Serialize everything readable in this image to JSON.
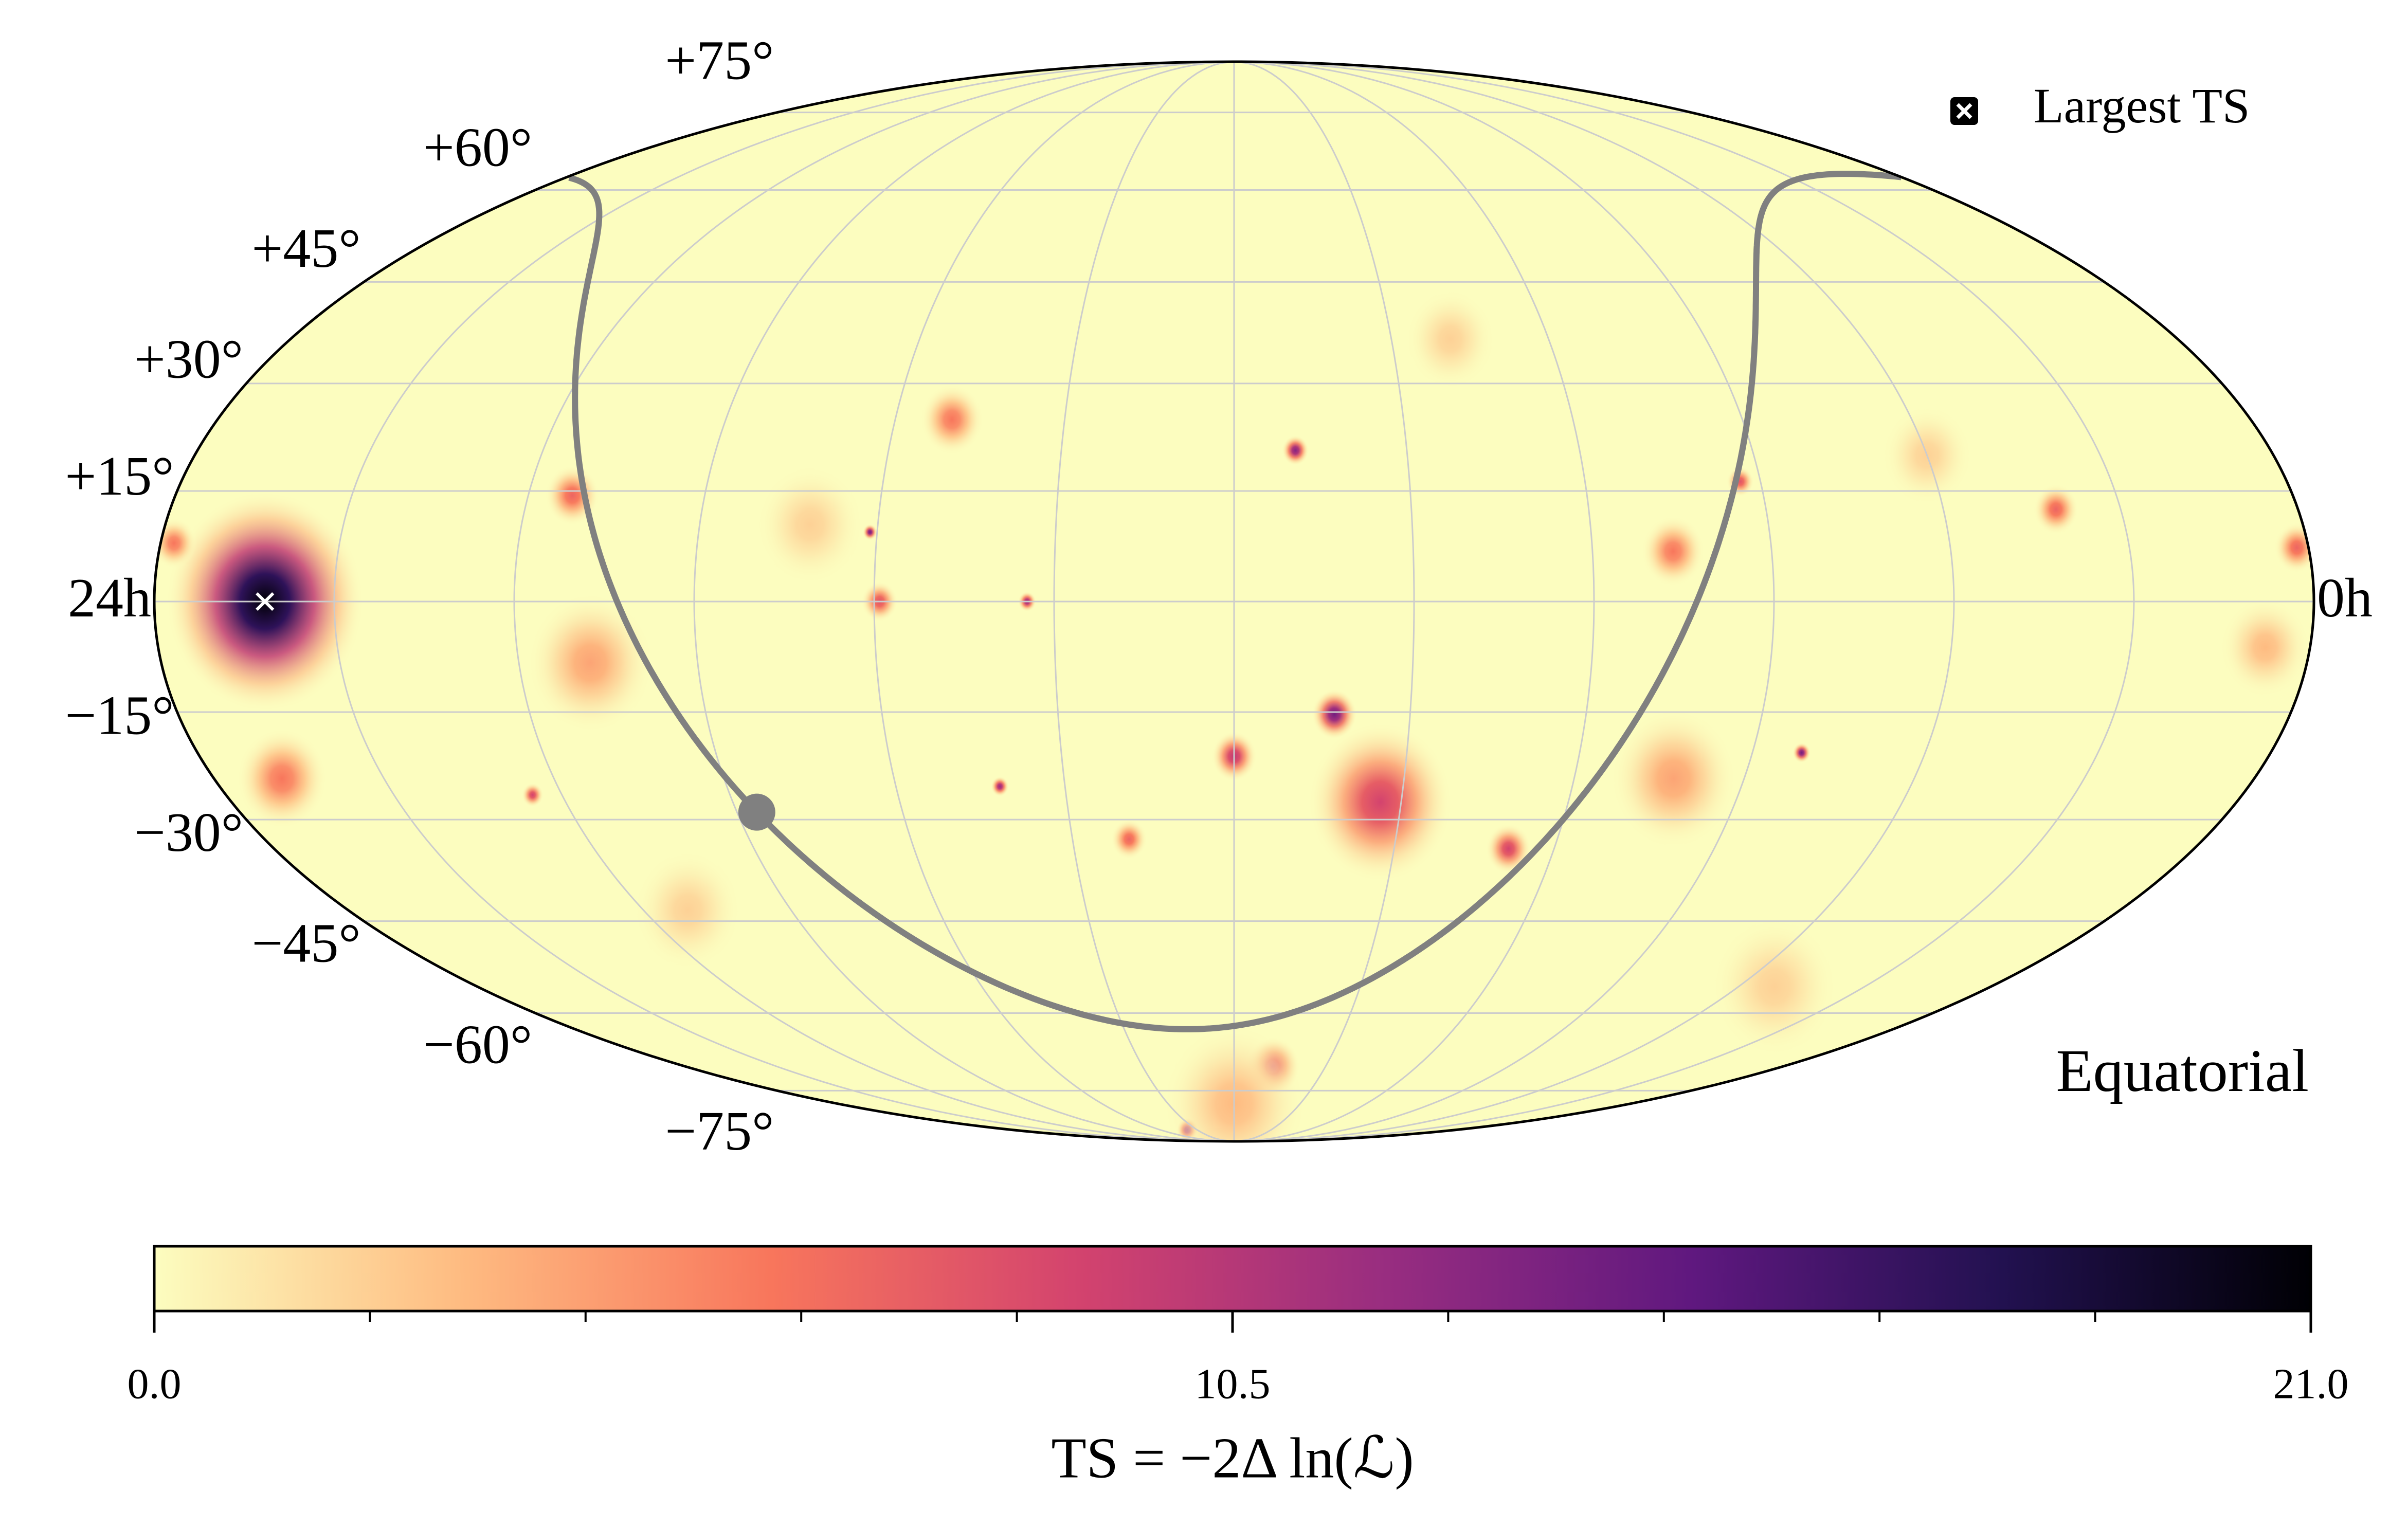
{
  "chart_data": {
    "type": "skymap",
    "projection": "mollweide",
    "frame": "Equatorial",
    "legend": {
      "label": "Largest TS",
      "corner": "upper right"
    },
    "ra_ticks": [
      {
        "value": 24,
        "label": "24h"
      },
      {
        "value": 0,
        "label": "0h"
      }
    ],
    "ra_grid": [
      2,
      4,
      6,
      8,
      10,
      12,
      14,
      16,
      18,
      20,
      22
    ],
    "dec_ticks": [
      {
        "value": 75,
        "label": "+75°"
      },
      {
        "value": 60,
        "label": "+60°"
      },
      {
        "value": 45,
        "label": "+45°"
      },
      {
        "value": 30,
        "label": "+30°"
      },
      {
        "value": 15,
        "label": "+15°"
      },
      {
        "value": -15,
        "label": "−15°"
      },
      {
        "value": -30,
        "label": "−30°"
      },
      {
        "value": -45,
        "label": "−45°"
      },
      {
        "value": -60,
        "label": "−60°"
      },
      {
        "value": -75,
        "label": "−75°"
      }
    ],
    "dec_grid": [
      -75,
      -60,
      -45,
      -30,
      -15,
      0,
      15,
      30,
      45,
      60,
      75
    ],
    "ra": [
      22.77,
      23.2,
      19.5,
      19.2,
      20.35,
      16.76,
      16.08,
      15.94,
      15.33,
      14.3,
      14.77,
      13.3,
      12,
      11.29,
      10.86,
      10.25,
      8.57,
      11.15,
      14.5,
      7.1,
      6.83,
      5.43,
      2.73,
      6.23,
      0.13,
      23.85,
      0.5,
      9.25,
      19.4,
      3.43,
      4,
      12
    ],
    "dec": [
      0,
      -24.2,
      14.4,
      -8.3,
      -26.5,
      10.4,
      9.4,
      0,
      24.9,
      0,
      -25.3,
      -32.8,
      -21.1,
      20.6,
      -15.3,
      -27.5,
      -34.2,
      -70,
      -85,
      6.8,
      -24.2,
      -20.6,
      12.5,
      16.3,
      7.3,
      7.9,
      -6.2,
      36.4,
      -43.3,
      -55.5,
      19.9,
      -78
    ],
    "values": [
      21,
      6,
      7,
      4,
      9,
      2,
      14,
      8,
      6,
      12,
      12,
      7,
      10,
      13,
      14,
      9,
      9,
      8,
      12,
      6,
      4,
      14,
      7,
      8,
      7,
      6,
      3,
      2,
      2,
      2,
      2,
      3
    ],
    "sigma": [
      11,
      5,
      3,
      7,
      1.2,
      6,
      0.8,
      2,
      3.5,
      1,
      1,
      2,
      2.5,
      1.5,
      2.5,
      8,
      2.5,
      3,
      1.2,
      3.5,
      7,
      1,
      2.5,
      1.5,
      2.5,
      2.5,
      5,
      5,
      6,
      7,
      5,
      8
    ],
    "colorbar": {
      "label": "TS = −2Δ ln(ℒ)",
      "lim": [
        0,
        21
      ],
      "ticks": [
        {
          "value": 0,
          "label": "0.0"
        },
        {
          "value": 10.5,
          "label": "10.5"
        },
        {
          "value": 21,
          "label": "21.0"
        }
      ],
      "minor_ticks": [
        2.1,
        4.2,
        6.3,
        8.4,
        12.6,
        14.7,
        16.8,
        18.9
      ],
      "colormap": [
        "#fcfdbf",
        "#febb81",
        "#f8765c",
        "#d3436e",
        "#982d80",
        "#5f187f",
        "#221150",
        "#000004"
      ]
    },
    "galactic_plane_color": "#808080",
    "grid_color": "#cccccc"
  }
}
